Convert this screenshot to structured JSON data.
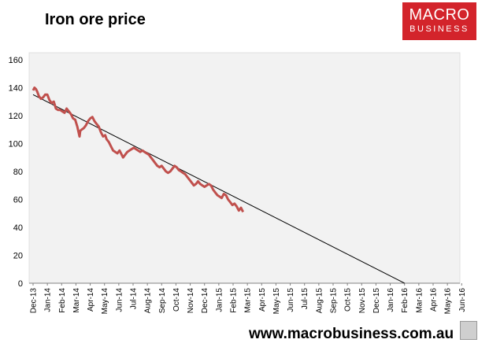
{
  "header": {
    "title": "Iron ore price",
    "logo_line1": "MACRO",
    "logo_line2": "BUSINESS"
  },
  "footer": {
    "url": "www.macrobusiness.com.au"
  },
  "chart_data": {
    "type": "line",
    "title": "Iron ore price",
    "xlabel": "",
    "ylabel": "",
    "ylim": [
      0,
      165
    ],
    "yticks": [
      0,
      20,
      40,
      60,
      80,
      100,
      120,
      140,
      160
    ],
    "categories": [
      "Dec-13",
      "Jan-14",
      "Feb-14",
      "Mar-14",
      "Apr-14",
      "May-14",
      "Jun-14",
      "Jul-14",
      "Aug-14",
      "Sep-14",
      "Oct-14",
      "Nov-14",
      "Dec-14",
      "Jan-15",
      "Feb-15",
      "Mar-15",
      "Apr-15",
      "May-15",
      "Jun-15",
      "Jul-15",
      "Aug-15",
      "Sep-15",
      "Oct-15",
      "Nov-15",
      "Dec-15",
      "Jan-16",
      "Feb-16",
      "Mar-16",
      "Apr-16",
      "May-16",
      "Jun-16"
    ],
    "grid": false,
    "series": [
      {
        "name": "Iron ore price",
        "color": "#c0504d",
        "x": [
          0,
          0.1,
          0.2,
          0.3,
          0.4,
          0.55,
          0.7,
          0.85,
          1.0,
          1.15,
          1.3,
          1.45,
          1.6,
          1.75,
          1.9,
          2.05,
          2.2,
          2.35,
          2.5,
          2.65,
          2.8,
          2.95,
          3.1,
          3.25,
          3.3,
          3.4,
          3.55,
          3.7,
          3.85,
          4.0,
          4.15,
          4.3,
          4.45,
          4.6,
          4.75,
          4.9,
          5.05,
          5.15,
          5.3,
          5.45,
          5.6,
          5.75,
          5.9,
          6.05,
          6.2,
          6.3,
          6.45,
          6.6,
          6.75,
          6.9,
          7.05,
          7.2,
          7.35,
          7.5,
          7.65,
          7.8,
          7.95,
          8.1,
          8.25,
          8.4,
          8.55,
          8.7,
          8.85,
          9.0,
          9.15,
          9.3,
          9.45,
          9.6,
          9.75,
          9.9,
          10.05,
          10.2,
          10.35,
          10.5,
          10.65,
          10.8,
          10.95,
          11.1,
          11.25,
          11.4,
          11.55,
          11.7,
          11.85,
          12.0,
          12.15,
          12.3,
          12.45,
          12.6,
          12.75,
          12.9,
          13.05,
          13.2,
          13.35,
          13.5,
          13.65,
          13.8,
          13.95,
          14.1,
          14.25,
          14.4,
          14.55,
          14.7
        ],
        "values": [
          138,
          140,
          139,
          137,
          134,
          132,
          133,
          135,
          135,
          131,
          129,
          130,
          125,
          124,
          124,
          123,
          122,
          125,
          123,
          121,
          118,
          117,
          112,
          105,
          109,
          110,
          111,
          113,
          116,
          118,
          119,
          116,
          114,
          112,
          108,
          105,
          106,
          103,
          101,
          98,
          95,
          94,
          93,
          95,
          92,
          90,
          92,
          94,
          95,
          96,
          97,
          96,
          95,
          94,
          95,
          94,
          93,
          92,
          90,
          88,
          86,
          84,
          83,
          84,
          82,
          80,
          79,
          80,
          82,
          84,
          83,
          81,
          80,
          79,
          78,
          76,
          74,
          72,
          70,
          71,
          73,
          71,
          70,
          69,
          70,
          71,
          70,
          67,
          65,
          63,
          62,
          61,
          64,
          63,
          60,
          58,
          56,
          57,
          55,
          52,
          54,
          51
        ]
      },
      {
        "name": "Trend",
        "color": "#000000",
        "x": [
          0,
          26
        ],
        "values": [
          135,
          0
        ]
      }
    ]
  }
}
